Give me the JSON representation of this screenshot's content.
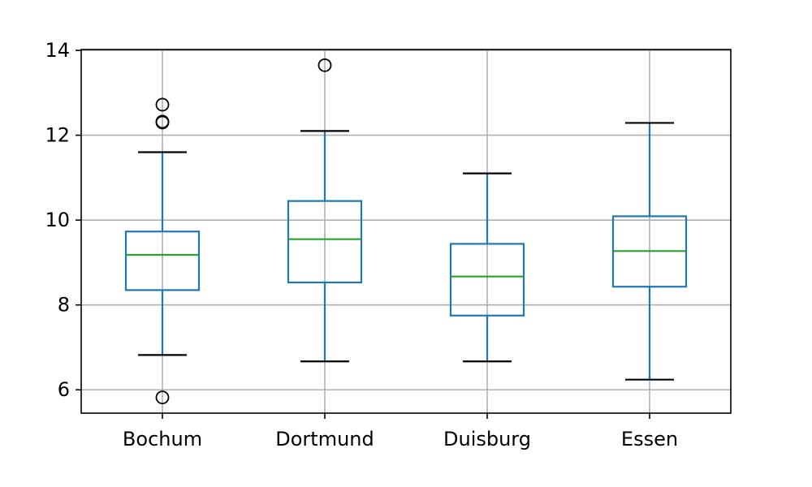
{
  "chart_data": {
    "type": "box",
    "title": "",
    "xlabel": "",
    "ylabel": "",
    "categories": [
      "Bochum",
      "Dortmund",
      "Duisburg",
      "Essen"
    ],
    "ylim": [
      5.45,
      14.02
    ],
    "yticks": [
      6,
      8,
      10,
      12,
      14
    ],
    "grid": true,
    "boxes": [
      {
        "category": "Bochum",
        "whisker_low": 6.82,
        "q1": 8.35,
        "median": 9.18,
        "q3": 9.73,
        "whisker_high": 11.6,
        "outliers": [
          5.82,
          12.3,
          12.32,
          12.72
        ]
      },
      {
        "category": "Dortmund",
        "whisker_low": 6.67,
        "q1": 8.53,
        "median": 9.55,
        "q3": 10.45,
        "whisker_high": 12.1,
        "outliers": [
          13.65
        ]
      },
      {
        "category": "Duisburg",
        "whisker_low": 6.67,
        "q1": 7.75,
        "median": 8.67,
        "q3": 9.44,
        "whisker_high": 11.1,
        "outliers": []
      },
      {
        "category": "Essen",
        "whisker_low": 6.24,
        "q1": 8.43,
        "median": 9.27,
        "q3": 10.09,
        "whisker_high": 12.29,
        "outliers": []
      }
    ],
    "colors": {
      "box": "#1f77b4",
      "median": "#2ca02c",
      "cap": "#000000",
      "grid": "#b0b0b0"
    }
  }
}
